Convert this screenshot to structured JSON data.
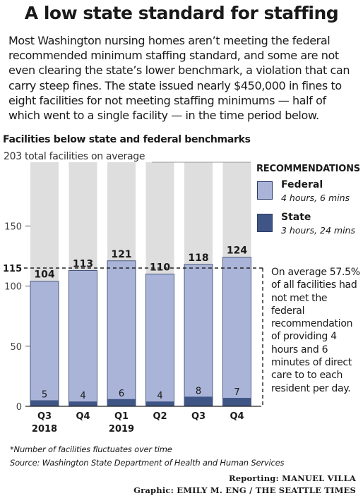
{
  "header": {
    "title": "A low state standard for staffing",
    "intro": "Most Washington nursing homes aren’t meeting the federal recommended minimum staffing standard, and some are not even clearing the state’s lower benchmark, a violation that can carry steep fines. The state issued nearly $450,000 in fines to eight facilities for not meeting staffing minimums — half of which went to a single facility — in the time period below."
  },
  "chart_data": {
    "type": "bar",
    "title": "Facilities below state and federal benchmarks",
    "total_label": "203 total facilities on average",
    "total": 203,
    "categories": [
      "Q3",
      "Q4",
      "Q1",
      "Q2",
      "Q3",
      "Q4"
    ],
    "year_labels": [
      "2018",
      "",
      "2019",
      "",
      "",
      ""
    ],
    "series": [
      {
        "name": "Federal",
        "values": [
          104,
          113,
          121,
          110,
          118,
          124
        ],
        "color": "#a9b4d8"
      },
      {
        "name": "State",
        "values": [
          5,
          4,
          6,
          4,
          8,
          7
        ],
        "color": "#3f5585"
      }
    ],
    "background_color": "#dedede",
    "y_ticks": [
      0,
      50,
      100,
      150
    ],
    "reference_line": {
      "value": 115,
      "label": "115"
    },
    "ylim": [
      0,
      203
    ],
    "grid": false,
    "legend": {
      "position": "right",
      "title": "RECOMMENDATIONS",
      "items": [
        {
          "name": "Federal",
          "note": "4 hours, 6 mins"
        },
        {
          "name": "State",
          "note": "3 hours, 24 mins"
        }
      ]
    },
    "annotation": "On average 57.5% of all facilities had not met the federal recommendation of providing 4 hours and 6 minutes of direct care to to each resident per day."
  },
  "footer": {
    "note": "*Number of facilities fluctuates over time",
    "source": "Source: Washington State Department of Health and Human Services",
    "reporting": "Reporting: MANUEL VILLA",
    "graphic": "Graphic: EMILY M. ENG / THE SEATTLE TIMES"
  }
}
